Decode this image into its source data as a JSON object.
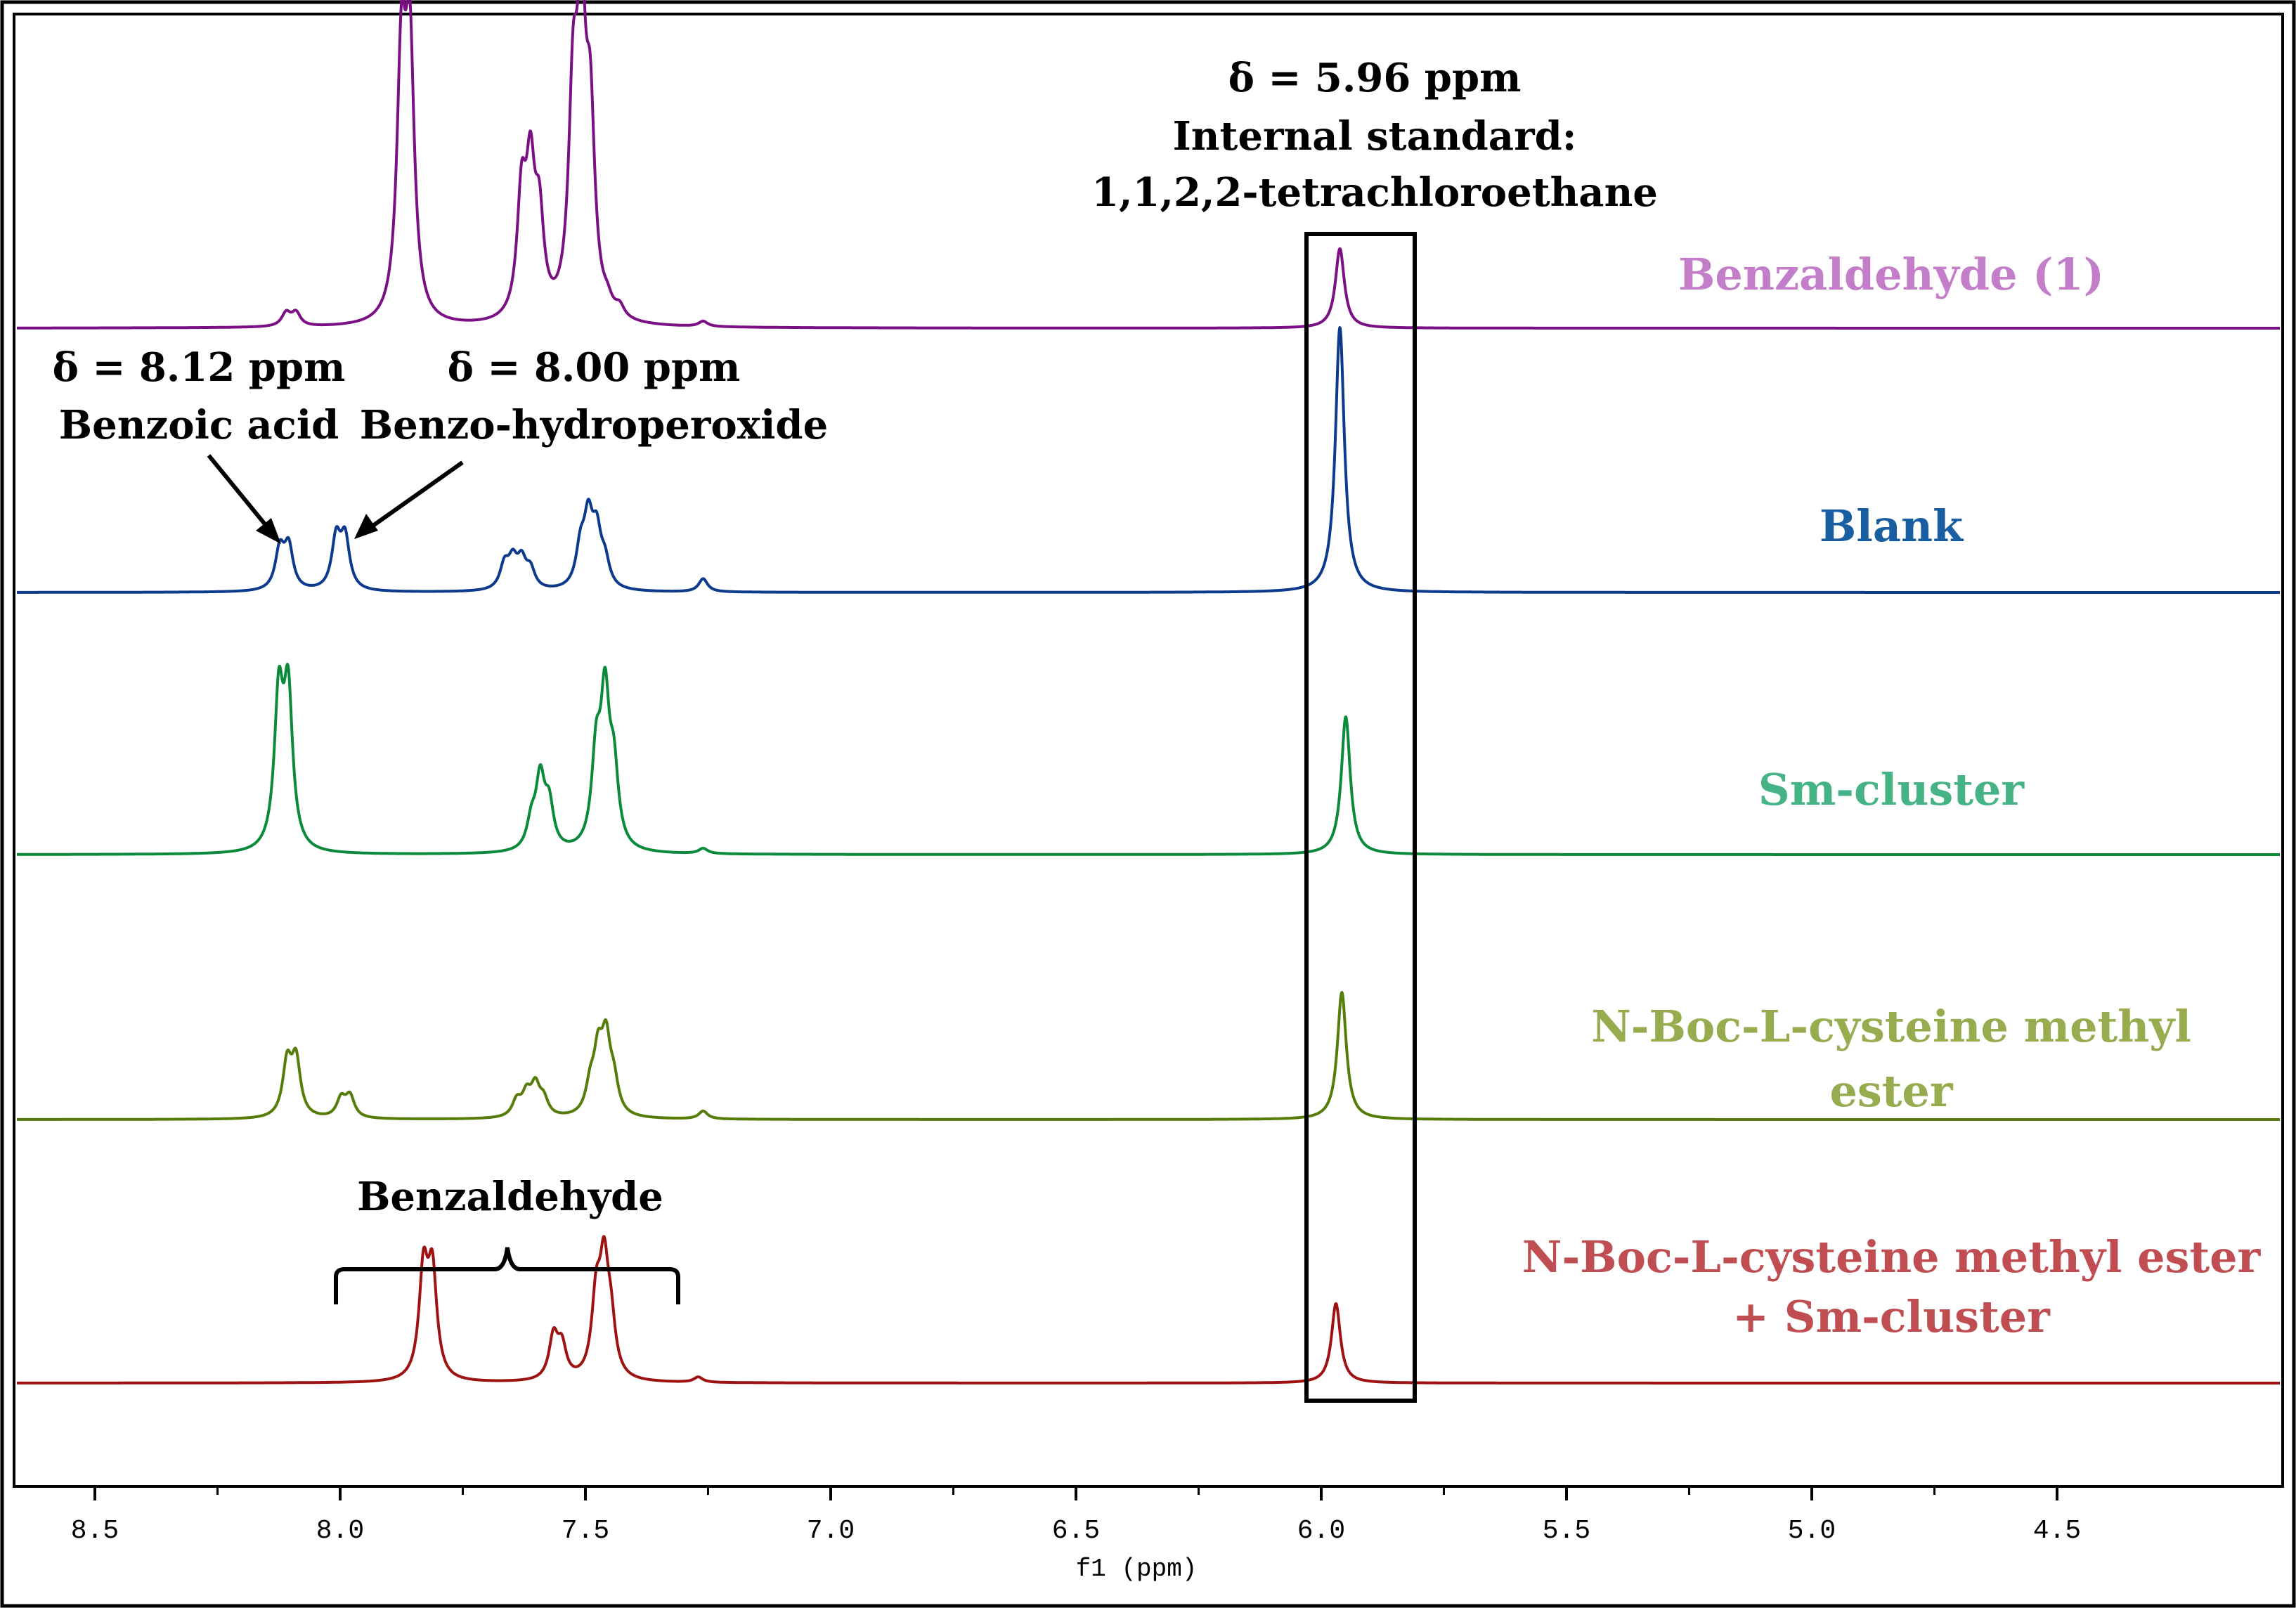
{
  "chart_data": {
    "type": "line",
    "title": "",
    "xlabel": "f1 (ppm)",
    "ylabel": "",
    "xlim": [
      8.69,
      4.14
    ],
    "x_reversed": true,
    "xticks": [
      "8.5",
      "8.0",
      "7.5",
      "7.0",
      "6.5",
      "6.0",
      "5.5",
      "5.0",
      "4.5"
    ],
    "xtick_values": [
      8.5,
      8.0,
      7.5,
      7.0,
      6.5,
      6.0,
      5.5,
      5.0,
      4.5
    ],
    "series": [
      {
        "name": "Benzaldehyde (1)",
        "color": "#7b1085",
        "label_color": "#c47ec9",
        "label_lines": [
          "Benzaldehyde (1)"
        ],
        "peaks": [
          {
            "ppm": 8.11,
            "h": 0.05
          },
          {
            "ppm": 8.09,
            "h": 0.05
          },
          {
            "ppm": 7.875,
            "h": 0.94
          },
          {
            "ppm": 7.858,
            "h": 0.97
          },
          {
            "ppm": 7.63,
            "h": 0.44
          },
          {
            "ppm": 7.612,
            "h": 0.5
          },
          {
            "ppm": 7.594,
            "h": 0.34
          },
          {
            "ppm": 7.525,
            "h": 0.76
          },
          {
            "ppm": 7.508,
            "h": 1.0
          },
          {
            "ppm": 7.49,
            "h": 0.67
          },
          {
            "ppm": 7.455,
            "h": 0.04
          },
          {
            "ppm": 7.43,
            "h": 0.04
          },
          {
            "ppm": 7.26,
            "h": 0.02
          }
        ],
        "std_peak": {
          "ppm": 5.962,
          "h": 0.3
        }
      },
      {
        "name": "Blank",
        "color": "#0c3a8c",
        "label_color": "#185ea0",
        "label_lines": [
          "Blank"
        ],
        "peaks": [
          {
            "ppm": 8.123,
            "h": 0.15
          },
          {
            "ppm": 8.105,
            "h": 0.16
          },
          {
            "ppm": 8.008,
            "h": 0.19
          },
          {
            "ppm": 7.99,
            "h": 0.19
          },
          {
            "ppm": 7.665,
            "h": 0.09
          },
          {
            "ppm": 7.648,
            "h": 0.1
          },
          {
            "ppm": 7.63,
            "h": 0.1
          },
          {
            "ppm": 7.612,
            "h": 0.07
          },
          {
            "ppm": 7.51,
            "h": 0.14
          },
          {
            "ppm": 7.494,
            "h": 0.24
          },
          {
            "ppm": 7.477,
            "h": 0.19
          },
          {
            "ppm": 7.46,
            "h": 0.09
          },
          {
            "ppm": 7.26,
            "h": 0.05
          }
        ],
        "std_peak": {
          "ppm": 5.962,
          "h": 1.0
        }
      },
      {
        "name": "Sm-cluster",
        "color": "#0a8a3a",
        "label_color": "#45b385",
        "label_lines": [
          "Sm-cluster"
        ],
        "peaks": [
          {
            "ppm": 8.125,
            "h": 0.56
          },
          {
            "ppm": 8.106,
            "h": 0.57
          },
          {
            "ppm": 7.61,
            "h": 0.1
          },
          {
            "ppm": 7.592,
            "h": 0.26
          },
          {
            "ppm": 7.574,
            "h": 0.16
          },
          {
            "ppm": 7.478,
            "h": 0.33
          },
          {
            "ppm": 7.46,
            "h": 0.54
          },
          {
            "ppm": 7.442,
            "h": 0.27
          },
          {
            "ppm": 7.26,
            "h": 0.02
          }
        ],
        "std_peak": {
          "ppm": 5.95,
          "h": 0.52
        }
      },
      {
        "name": "N-Boc-L-cysteine methyl ester",
        "color": "#567c0a",
        "label_color": "#97ab4f",
        "label_lines": [
          "N-Boc-L-cysteine methyl",
          "ester"
        ],
        "peaks": [
          {
            "ppm": 8.108,
            "h": 0.2
          },
          {
            "ppm": 8.09,
            "h": 0.21
          },
          {
            "ppm": 7.998,
            "h": 0.07
          },
          {
            "ppm": 7.98,
            "h": 0.08
          },
          {
            "ppm": 7.64,
            "h": 0.06
          },
          {
            "ppm": 7.62,
            "h": 0.08
          },
          {
            "ppm": 7.602,
            "h": 0.11
          },
          {
            "ppm": 7.585,
            "h": 0.06
          },
          {
            "ppm": 7.49,
            "h": 0.1
          },
          {
            "ppm": 7.474,
            "h": 0.21
          },
          {
            "ppm": 7.458,
            "h": 0.26
          },
          {
            "ppm": 7.442,
            "h": 0.11
          },
          {
            "ppm": 7.26,
            "h": 0.03
          }
        ],
        "std_peak": {
          "ppm": 5.958,
          "h": 0.48
        }
      },
      {
        "name": "N-Boc-L-cysteine methyl ester + Sm-cluster",
        "color": "#9e1212",
        "label_color": "#bf4d52",
        "label_lines": [
          "N-Boc-L-cysteine methyl ester",
          "+ Sm-cluster"
        ],
        "peaks": [
          {
            "ppm": 7.83,
            "h": 0.4
          },
          {
            "ppm": 7.812,
            "h": 0.39
          },
          {
            "ppm": 7.565,
            "h": 0.16
          },
          {
            "ppm": 7.548,
            "h": 0.12
          },
          {
            "ppm": 7.478,
            "h": 0.28
          },
          {
            "ppm": 7.462,
            "h": 0.39
          },
          {
            "ppm": 7.448,
            "h": 0.18
          },
          {
            "ppm": 7.27,
            "h": 0.02
          }
        ],
        "std_peak": {
          "ppm": 5.97,
          "h": 0.3
        }
      }
    ],
    "annotations": {
      "internal_standard": [
        "δ = 5.96 ppm",
        "Internal standard:",
        "1,1,2,2-tetrachloroethane"
      ],
      "benzoic_acid": [
        "δ = 8.12 ppm",
        "Benzoic acid"
      ],
      "benzo_hydroperoxide": [
        "δ = 8.00 ppm",
        "Benzo-hydroperoxide"
      ],
      "benzaldehyde_bracket": "Benzaldehyde"
    }
  }
}
